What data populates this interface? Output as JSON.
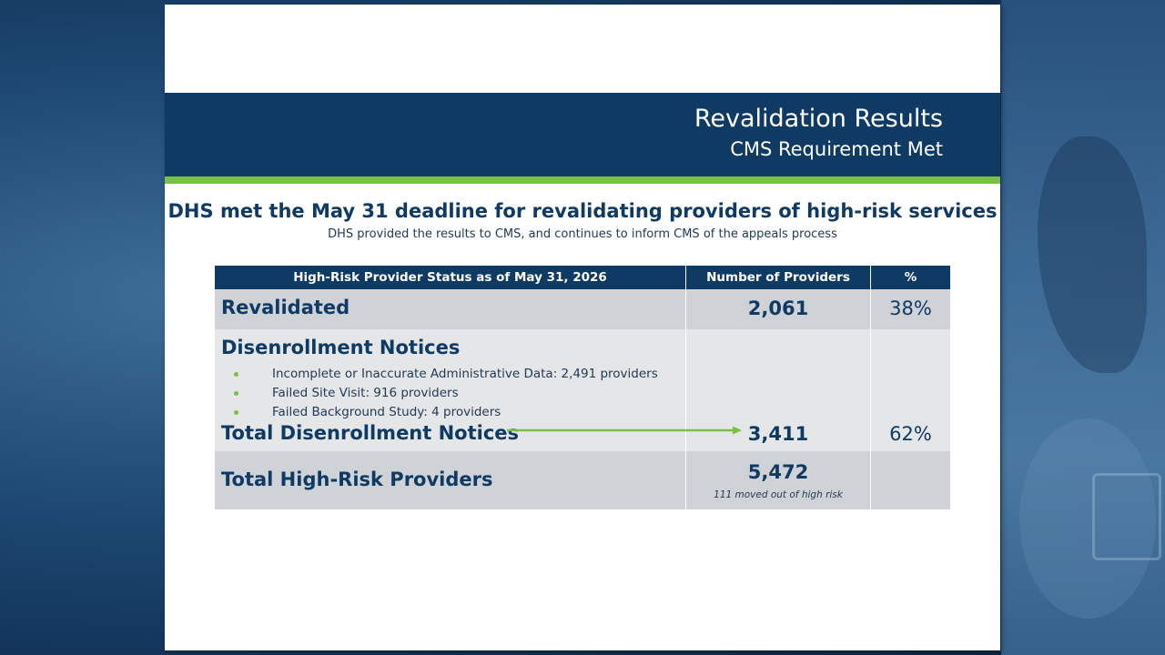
{
  "slide": {
    "title": "Revalidation Results",
    "subtitle": "CMS Requirement Met",
    "headline": "DHS met the May 31 deadline for revalidating providers of high-risk services",
    "subheadline": "DHS provided the results to CMS, and continues to inform CMS of the appeals process"
  },
  "table": {
    "headers": [
      "High-Risk Provider Status as of May 31, 2026",
      "Number of Providers",
      "%"
    ],
    "revalidated": {
      "label": "Revalidated",
      "count": "2,061",
      "percent": "38%"
    },
    "disenrollment": {
      "label": "Disenrollment Notices",
      "bullets": [
        "Incomplete or Inaccurate Administrative Data: 2,491 providers",
        "Failed Site Visit: 916 providers",
        "Failed Background Study: 4  providers"
      ],
      "total_label": "Total Disenrollment Notices",
      "total_count": "3,411",
      "total_percent": "62%"
    },
    "total": {
      "label": "Total High-Risk Providers",
      "count": "5,472",
      "note": "111 moved out of high risk"
    }
  },
  "colors": {
    "navy": "#0f3a64",
    "green": "#7ac142",
    "row_dark": "#cfd2d6",
    "row_light": "#e4e6e8"
  }
}
